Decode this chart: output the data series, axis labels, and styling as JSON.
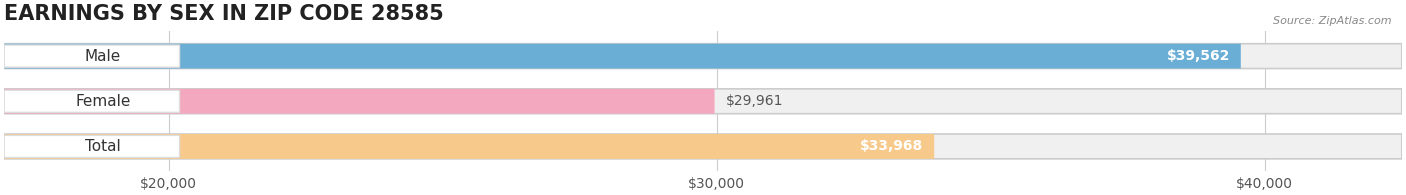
{
  "title": "EARNINGS BY SEX IN ZIP CODE 28585",
  "source": "Source: ZipAtlas.com",
  "categories": [
    "Male",
    "Female",
    "Total"
  ],
  "values": [
    39562,
    29961,
    33968
  ],
  "bar_colors": [
    "#6aaed6",
    "#f4a8c0",
    "#f7c98a"
  ],
  "bar_bg_color": "#e8e8e8",
  "label_colors": [
    "white",
    "#555555",
    "white"
  ],
  "value_labels": [
    "$39,562",
    "$29,961",
    "$33,968"
  ],
  "x_ticks": [
    20000,
    30000,
    40000
  ],
  "x_tick_labels": [
    "$20,000",
    "$30,000",
    "$40,000"
  ],
  "xlim": [
    17000,
    42500
  ],
  "bar_height": 0.55,
  "background_color": "#ffffff",
  "title_fontsize": 15,
  "tick_fontsize": 10,
  "label_fontsize": 11,
  "value_fontsize": 10
}
